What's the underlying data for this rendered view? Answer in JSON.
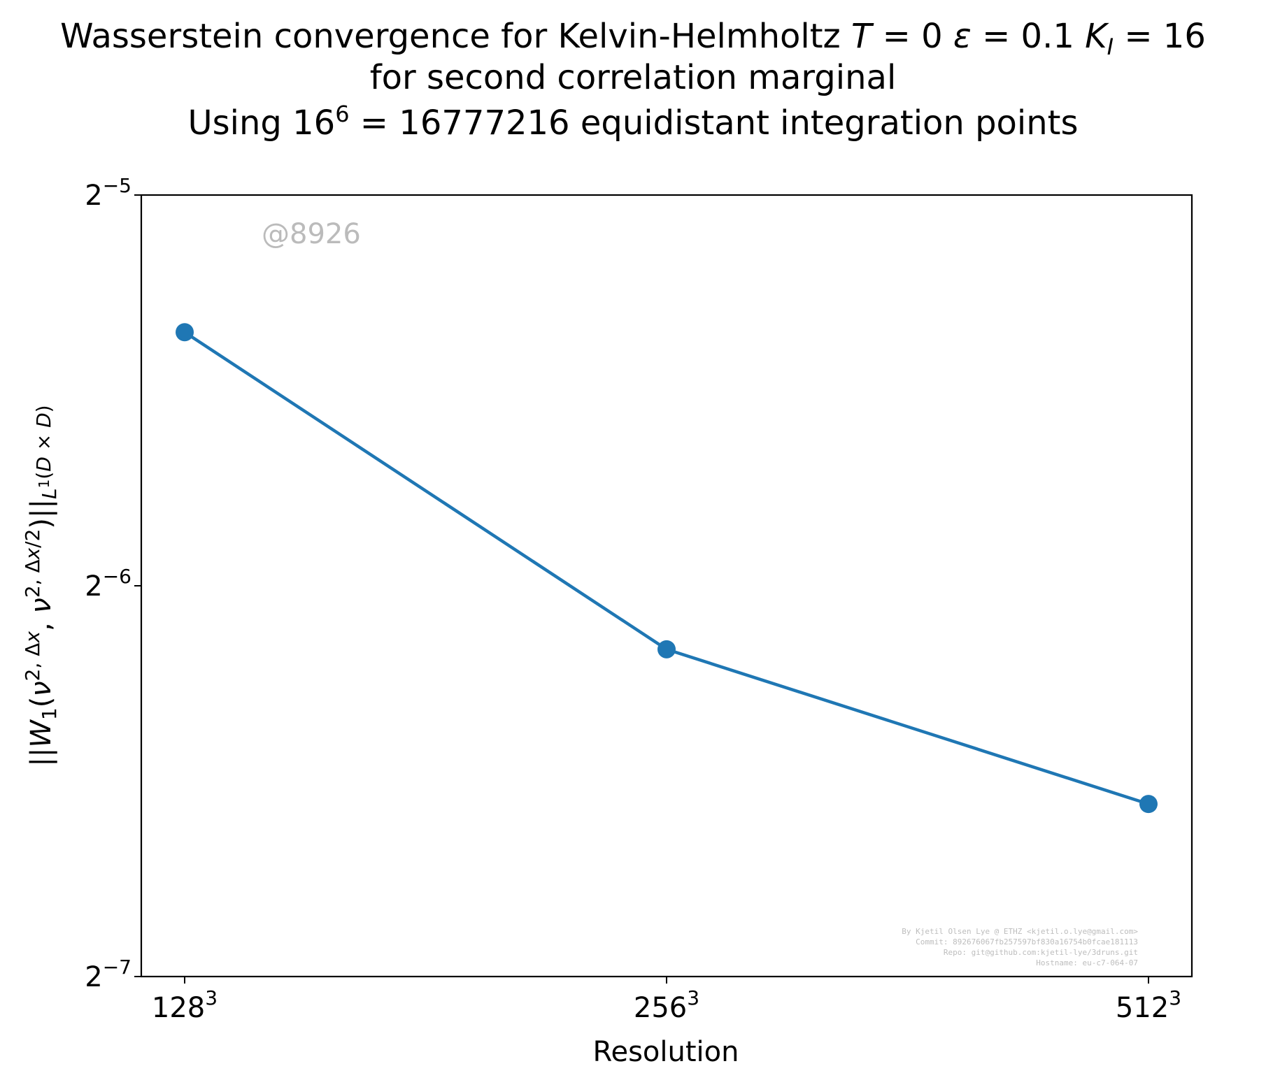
{
  "chart_data": {
    "type": "line",
    "title": [
      "Wasserstein convergence for Kelvin-Helmholtz T = 0 ε = 0.1 K_I = 16",
      "for second correlation marginal",
      "Using 16^6 = 16777216 equidistant integration points"
    ],
    "xlabel": "Resolution",
    "ylabel": "||W_1(ν^{2,Δx}, ν^{2,Δx/2})||_{L^1(D×D)}",
    "x_scale": "log2",
    "y_scale": "log2",
    "categories": [
      "128^3",
      "256^3",
      "512^3"
    ],
    "x": [
      128,
      256,
      512
    ],
    "series": [
      {
        "values": [
          0.0245,
          0.01396,
          0.01061
        ]
      }
    ],
    "ylim": [
      0.0078125,
      0.03125
    ],
    "yticks": [
      {
        "value": 0.03125,
        "base": "2",
        "exp": "−5"
      },
      {
        "value": 0.015625,
        "base": "2",
        "exp": "−6"
      },
      {
        "value": 0.0078125,
        "base": "2",
        "exp": "−7"
      }
    ],
    "xticks": [
      {
        "value": 128,
        "base": "128",
        "exp": "3"
      },
      {
        "value": 256,
        "base": "256",
        "exp": "3"
      },
      {
        "value": 512,
        "base": "512",
        "exp": "3"
      }
    ],
    "grid": false,
    "legend": "none",
    "colors": {
      "series": "#1f77b4",
      "axes": "#000000",
      "watermark": "#bbbbbb"
    },
    "watermark": "@8926",
    "credits": [
      "By Kjetil Olsen Lye @ ETHZ <kjetil.o.lye@gmail.com>",
      "Commit: 892676067fb257597bf830a16754b0fcae181113",
      "Repo: git@github.com:kjetil-lye/3druns.git",
      "Hostname: eu-c7-064-07"
    ]
  }
}
